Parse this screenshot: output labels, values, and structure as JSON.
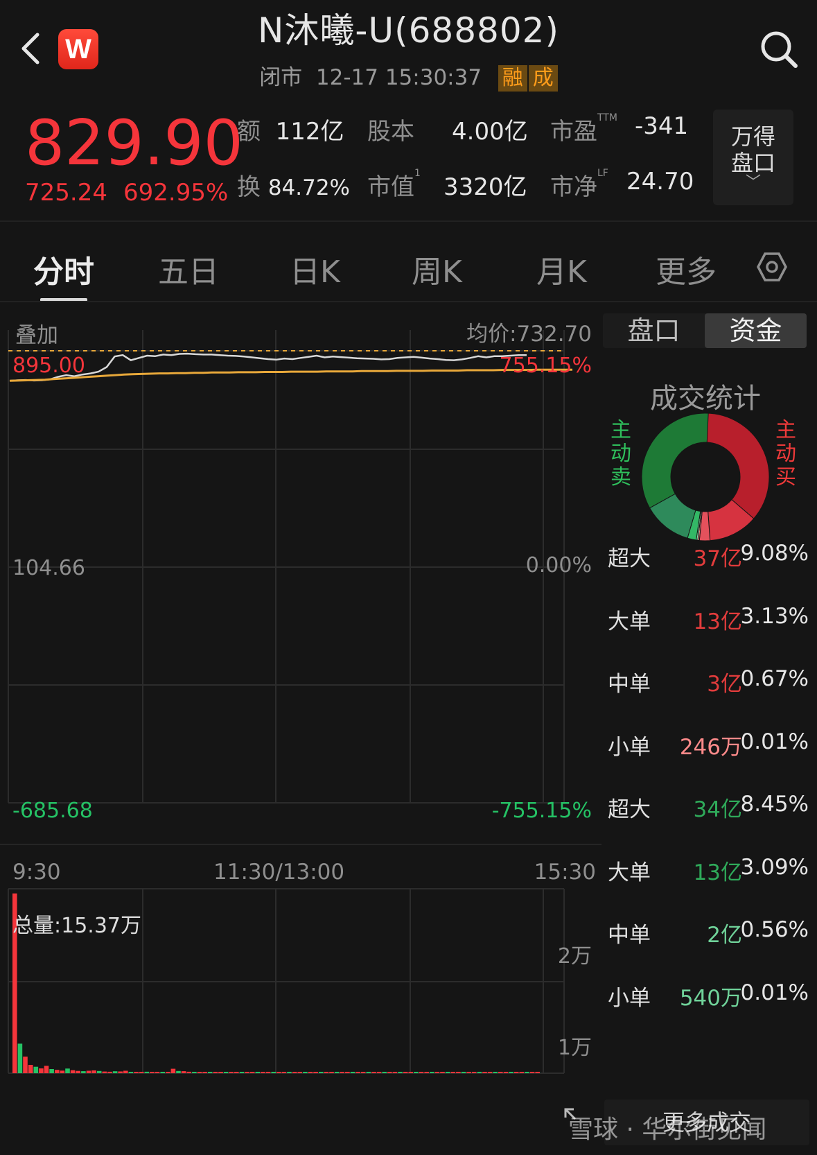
{
  "header": {
    "title": "N沐曦-U(688802)",
    "status": "闭市",
    "datetime": "12-17 15:30:37",
    "tags": [
      "融",
      "成"
    ],
    "logo_letter": "W"
  },
  "quote": {
    "price": "829.90",
    "change": "725.24",
    "change_pct": "692.95%",
    "amount_label": "额",
    "amount": "112亿",
    "equity_label": "股本",
    "equity": "4.00亿",
    "pe_label": "市盈",
    "pe_sup": "TTM",
    "pe": "-341",
    "turnover_label": "换",
    "turnover": "84.72%",
    "mktcap_label": "市值",
    "mktcap_sup": "1",
    "mktcap": "3320亿",
    "pb_label": "市净",
    "pb_sup": "LF",
    "pb": "24.70",
    "wind_btn_line1": "万得",
    "wind_btn_line2": "盘口",
    "wind_btn_arrow": "﹀"
  },
  "tabs": [
    "分时",
    "五日",
    "日K",
    "周K",
    "月K",
    "更多"
  ],
  "chart": {
    "overlay_label": "叠加",
    "avg_price_label": "均价:732.70",
    "y_top_price": "895.00",
    "y_top_pct": "755.15%",
    "y_mid_price": "104.66",
    "y_mid_pct": "0.00%",
    "y_bot_price": "-685.68",
    "y_bot_pct": "-755.15%",
    "time_start": "9:30",
    "time_mid": "11:30/13:00",
    "time_end": "15:30",
    "volume_label": "总量:15.37万",
    "vol_tick_high": "2万",
    "vol_tick_low": "1万",
    "colors": {
      "up": "#f5353b",
      "down": "#25c265",
      "price_line": "#d8d8d8",
      "avg_line": "#e8a83a"
    }
  },
  "chart_data": {
    "type": "line",
    "x_range": [
      "9:30",
      "15:30"
    ],
    "ylim": [
      -685.68,
      895.0
    ],
    "series": [
      {
        "values": [
          790,
          792,
          793,
          791,
          792,
          795,
          804,
          810,
          806,
          812,
          816,
          822,
          838,
          875,
          880,
          862,
          870,
          878,
          876,
          882,
          880,
          884,
          885,
          883,
          882,
          882,
          880,
          878,
          877,
          875,
          872,
          869,
          866,
          864,
          868,
          866,
          870,
          874,
          878,
          872,
          875,
          873,
          871,
          869,
          868,
          867,
          865,
          866,
          870,
          872,
          874,
          871,
          868,
          866,
          863,
          862,
          865,
          870,
          876,
          872,
          876,
          876,
          878,
          880,
          880
        ]
      },
      {
        "values": [
          790,
          791,
          792,
          793,
          794,
          796,
          798,
          800,
          802,
          804,
          806,
          808,
          810,
          812,
          813,
          814,
          815,
          816,
          816,
          817,
          817,
          818,
          818,
          819,
          819,
          819,
          820,
          820,
          820,
          821,
          821,
          821,
          822,
          822,
          822,
          822,
          823,
          823,
          823,
          823,
          824,
          824,
          824,
          824,
          825,
          825,
          825,
          825,
          826,
          826,
          826,
          826,
          827,
          827,
          827,
          827,
          828,
          828,
          828,
          828,
          829,
          829,
          829,
          829,
          829
        ]
      }
    ],
    "volume": {
      "total": "15.37万",
      "ylim": [
        0,
        20000
      ],
      "values": [
        19500,
        3200,
        1800,
        900,
        700,
        520,
        800,
        450,
        360,
        280,
        500,
        320,
        250,
        220,
        260,
        300,
        240,
        180,
        160,
        210,
        190,
        260,
        140,
        130,
        120,
        160,
        110,
        120,
        110,
        150,
        480,
        240,
        220,
        160,
        140,
        130,
        120,
        110,
        100,
        90,
        85,
        80,
        75,
        70,
        70,
        65,
        60,
        60,
        55,
        55,
        55,
        50,
        50,
        50,
        45,
        45,
        45,
        40,
        40,
        40,
        40,
        40,
        40,
        40,
        40,
        40,
        40,
        40,
        40,
        40,
        40,
        40,
        40,
        40,
        40,
        40,
        40,
        40,
        40,
        40,
        40,
        45,
        45,
        45,
        45,
        45,
        45,
        45,
        45,
        50,
        50,
        50,
        55,
        55,
        55,
        60,
        60,
        60,
        60,
        70
      ]
    }
  },
  "panel": {
    "tab_orderbook": "盘口",
    "tab_funds": "资金",
    "title": "成交统计",
    "sell_side_label": [
      "主",
      "动",
      "卖"
    ],
    "buy_side_label": [
      "主",
      "动",
      "买"
    ],
    "donut_colors": [
      "#b81f2c",
      "#d63340",
      "#e45a64",
      "#33b866",
      "#2e8a5b",
      "#1e7a36"
    ],
    "donut_values": [
      9.08,
      3.13,
      0.67,
      0.01,
      0.01,
      0.56,
      3.09,
      8.45
    ],
    "rows": [
      {
        "name": "超大",
        "amount": "37亿",
        "pct": "9.08%",
        "side": "buy"
      },
      {
        "name": "大单",
        "amount": "13亿",
        "pct": "3.13%",
        "side": "buy"
      },
      {
        "name": "中单",
        "amount": "3亿",
        "pct": "0.67%",
        "side": "buy"
      },
      {
        "name": "小单",
        "amount": "246万",
        "pct": "0.01%",
        "side": "buy-light"
      },
      {
        "name": "超大",
        "amount": "34亿",
        "pct": "8.45%",
        "side": "sell"
      },
      {
        "name": "大单",
        "amount": "13亿",
        "pct": "3.09%",
        "side": "sell"
      },
      {
        "name": "中单",
        "amount": "2亿",
        "pct": "0.56%",
        "side": "sell-light"
      },
      {
        "name": "小单",
        "amount": "540万",
        "pct": "0.01%",
        "side": "sell-light"
      }
    ],
    "more_button": "更多成交"
  },
  "watermark": "雪球 · 华尔街见闻"
}
